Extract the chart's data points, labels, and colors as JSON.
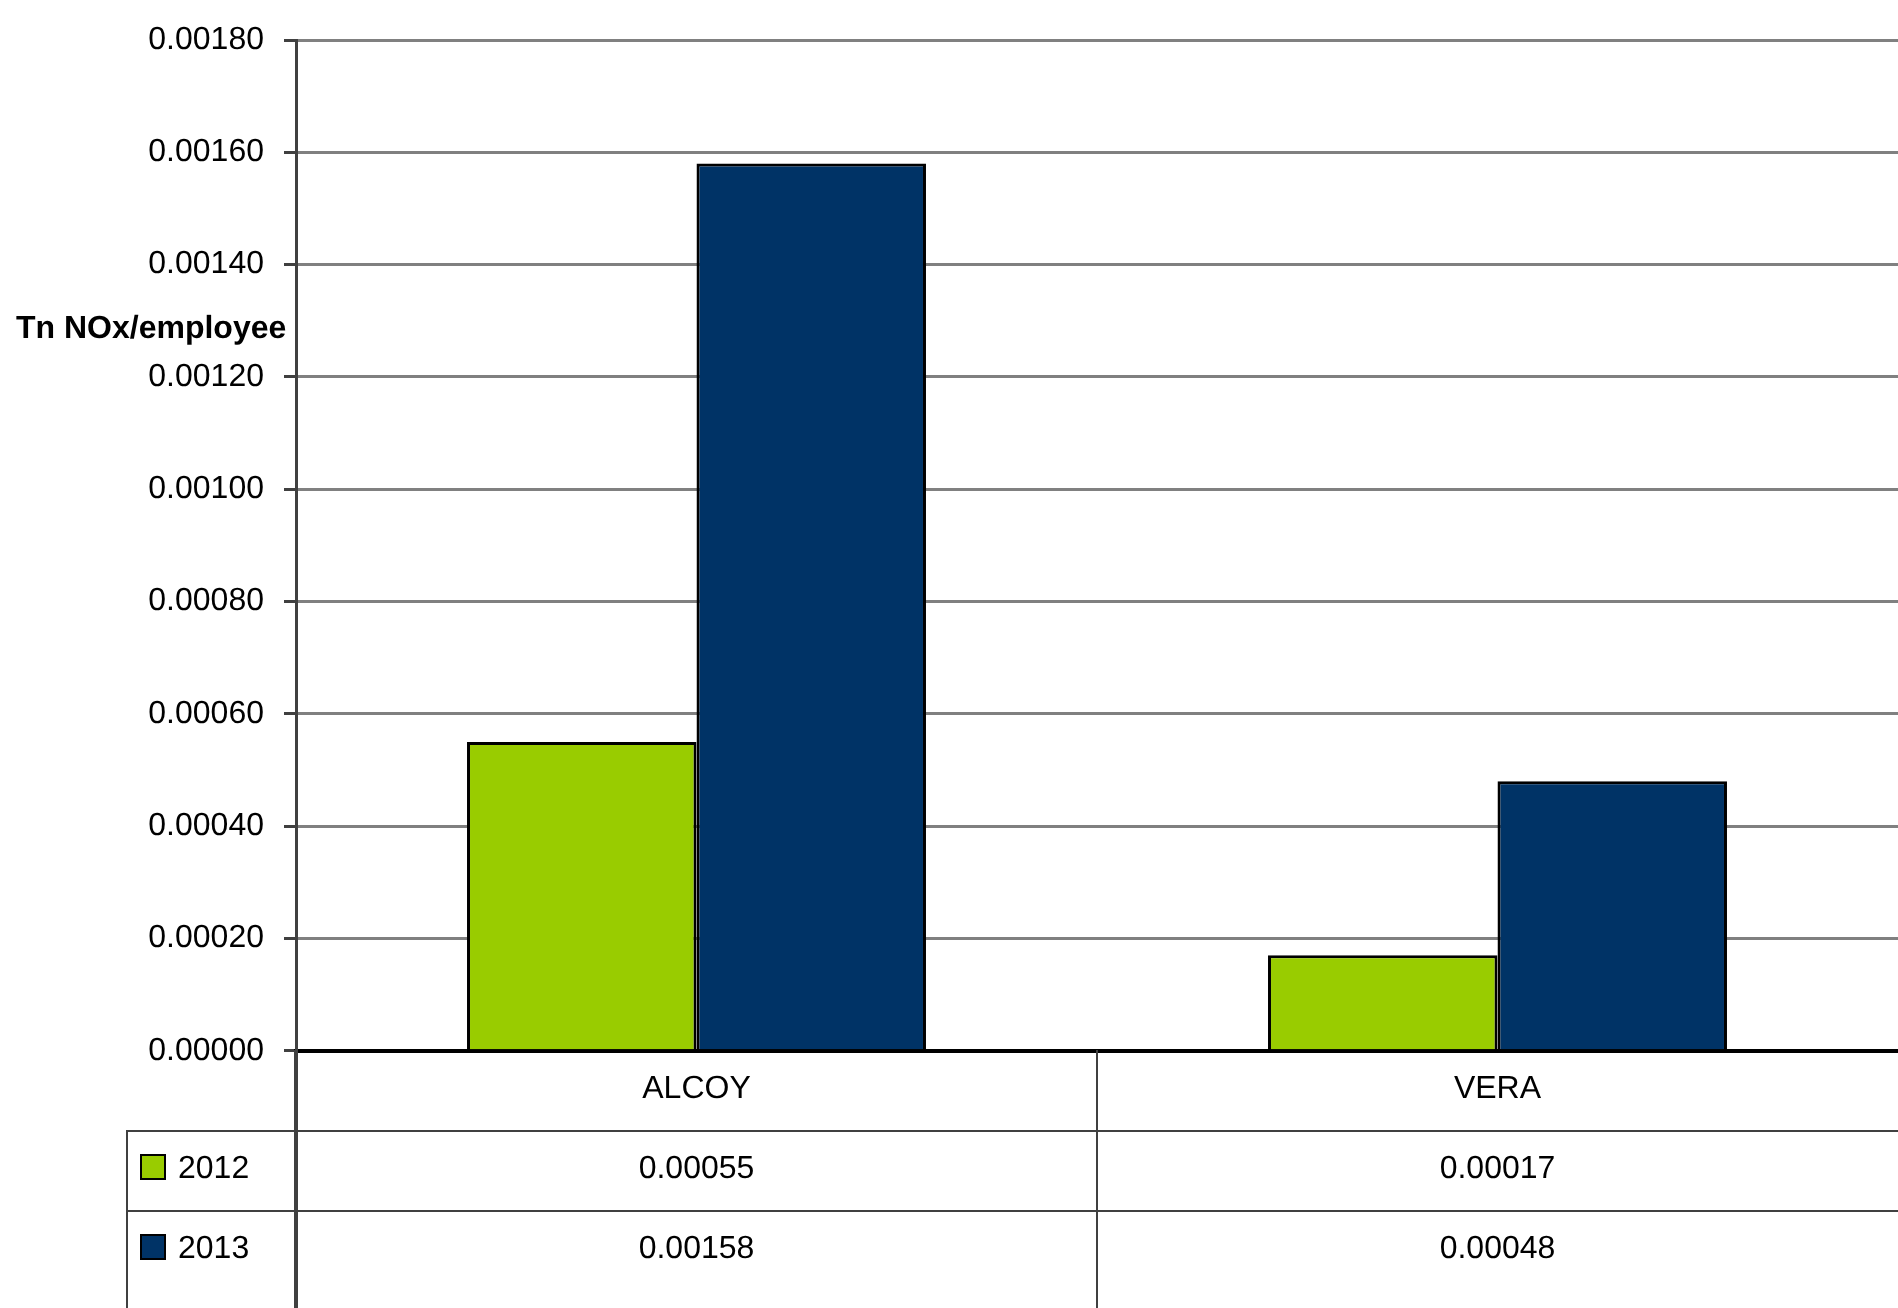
{
  "chart_data": {
    "type": "bar",
    "ylabel": "Tn NOx/employee",
    "categories": [
      "ALCOY",
      "VERA"
    ],
    "series": [
      {
        "name": "2012",
        "color": "#99cc00",
        "values": [
          0.00055,
          0.00017
        ]
      },
      {
        "name": "2013",
        "color": "#003366",
        "values": [
          0.00158,
          0.00048
        ]
      }
    ],
    "ylim": [
      0,
      0.0018
    ],
    "yticks": [
      {
        "value": 0,
        "label": "0.00000"
      },
      {
        "value": 0.0002,
        "label": "0.00020"
      },
      {
        "value": 0.0004,
        "label": "0.00040"
      },
      {
        "value": 0.0006,
        "label": "0.00060"
      },
      {
        "value": 0.0008,
        "label": "0.00080"
      },
      {
        "value": 0.001,
        "label": "0.00100"
      },
      {
        "value": 0.0012,
        "label": "0.00120"
      },
      {
        "value": 0.0014,
        "label": "0.00140"
      },
      {
        "value": 0.0016,
        "label": "0.00160"
      },
      {
        "value": 0.0018,
        "label": "0.00180"
      }
    ],
    "grid": "y",
    "legend": "bottom left",
    "data_labels": true
  }
}
